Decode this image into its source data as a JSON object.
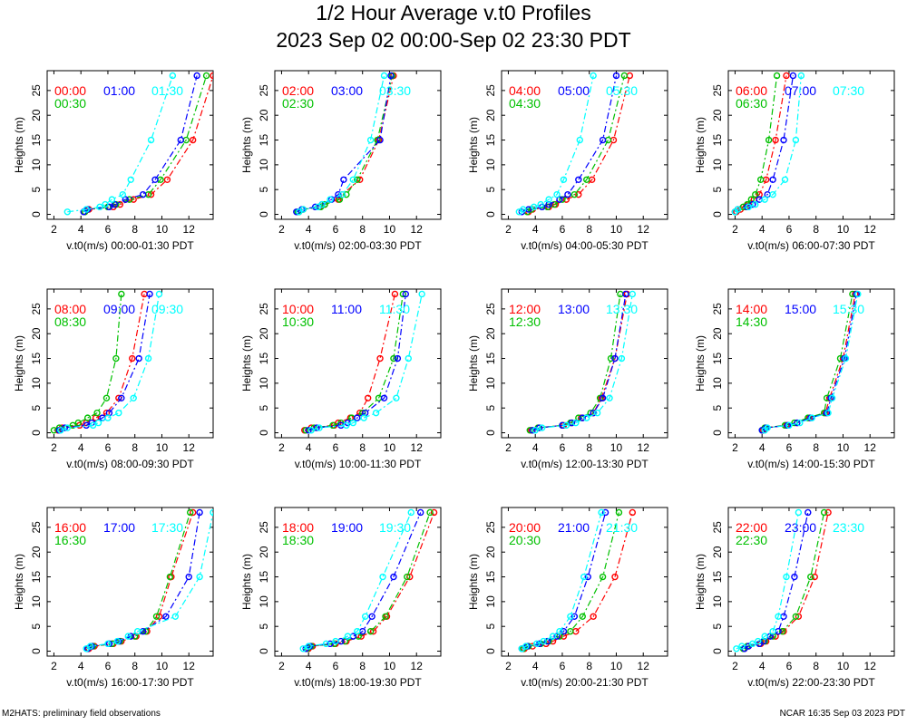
{
  "title": "1/2 Hour Average v.t0 Profiles",
  "subtitle": "2023 Sep 02 00:00-Sep 02 23:30 PDT",
  "footer_left": "M2HATS: preliminary field observations",
  "footer_right": "NCAR 16:35 Sep 03 2023 PDT",
  "colors": {
    "first": "#ff0000",
    "second": "#0000ff",
    "third": "#00ffff",
    "fourth": "#00c000"
  },
  "chart_data": {
    "type": "line",
    "ylabel": "Heights (m)",
    "xlim": [
      1.5,
      13.8
    ],
    "ylim": [
      -1,
      29
    ],
    "xticks": [
      2,
      4,
      6,
      8,
      10,
      12
    ],
    "yticks": [
      0,
      5,
      10,
      15,
      20,
      25
    ],
    "heights": [
      0.5,
      1,
      1.5,
      2,
      3,
      4,
      7,
      15,
      28
    ],
    "panels": [
      {
        "xlabel": "v.t0(m/s) 00:00-01:30 PDT",
        "series": [
          {
            "name": "00:00",
            "values": [
              4.3,
              4.6,
              6.4,
              6.9,
              7.9,
              9.2,
              10.4,
              12.3,
              13.8
            ]
          },
          {
            "name": "00:30",
            "values": [
              4.3,
              4.5,
              6.0,
              6.6,
              7.6,
              9.0,
              9.9,
              11.8,
              13.3
            ]
          },
          {
            "name": "01:00",
            "values": [
              4.2,
              4.5,
              6.1,
              6.5,
              7.3,
              8.6,
              9.5,
              11.4,
              12.6
            ]
          },
          {
            "name": "01:30",
            "values": [
              3.0,
              4.4,
              5.4,
              5.8,
              6.3,
              7.1,
              7.7,
              9.2,
              10.8
            ]
          }
        ]
      },
      {
        "xlabel": "v.t0(m/s) 02:00-03:30 PDT",
        "series": [
          {
            "name": "02:00",
            "values": [
              3.3,
              3.6,
              4.8,
              5.2,
              6.2,
              6.5,
              7.8,
              9.2,
              10.3
            ]
          },
          {
            "name": "02:30",
            "values": [
              3.2,
              3.6,
              4.9,
              5.2,
              6.3,
              6.8,
              7.6,
              9.1,
              10.2
            ]
          },
          {
            "name": "03:00",
            "values": [
              3.1,
              3.5,
              4.5,
              5.0,
              5.7,
              6.2,
              6.6,
              9.3,
              10.1
            ]
          },
          {
            "name": "03:30",
            "values": [
              3.3,
              3.6,
              4.7,
              5.0,
              5.6,
              6.5,
              7.3,
              8.6,
              9.6
            ]
          }
        ]
      },
      {
        "xlabel": "v.t0(m/s) 04:00-05:30 PDT",
        "series": [
          {
            "name": "04:00",
            "values": [
              3.5,
              3.8,
              5.0,
              5.5,
              6.3,
              7.2,
              8.2,
              9.8,
              11.0
            ]
          },
          {
            "name": "04:30",
            "values": [
              3.4,
              3.7,
              4.9,
              5.4,
              6.0,
              6.9,
              7.8,
              9.4,
              10.6
            ]
          },
          {
            "name": "05:00",
            "values": [
              3.0,
              3.5,
              4.5,
              5.0,
              5.8,
              6.4,
              7.2,
              9.0,
              10.0
            ]
          },
          {
            "name": "05:30",
            "values": [
              2.8,
              3.1,
              3.9,
              4.4,
              5.0,
              5.6,
              6.1,
              7.3,
              8.3
            ]
          }
        ]
      },
      {
        "xlabel": "v.t0(m/s) 06:00-07:30 PDT",
        "series": [
          {
            "name": "06:00",
            "values": [
              2.1,
              2.4,
              2.8,
              3.0,
              3.4,
              3.8,
              4.3,
              5.0,
              5.8
            ]
          },
          {
            "name": "06:30",
            "values": [
              2.0,
              2.2,
              2.6,
              2.9,
              3.2,
              3.5,
              3.9,
              4.5,
              5.1
            ]
          },
          {
            "name": "07:00",
            "values": [
              2.0,
              2.2,
              2.9,
              3.3,
              3.8,
              4.4,
              4.8,
              5.6,
              6.3
            ]
          },
          {
            "name": "07:30",
            "values": [
              2.0,
              2.2,
              3.0,
              3.5,
              4.2,
              4.8,
              5.7,
              6.5,
              6.9
            ]
          }
        ]
      },
      {
        "xlabel": "v.t0(m/s) 08:00-09:30 PDT",
        "series": [
          {
            "name": "08:00",
            "values": [
              2.3,
              2.6,
              3.9,
              4.4,
              5.1,
              5.9,
              6.8,
              7.8,
              8.7
            ]
          },
          {
            "name": "08:30",
            "values": [
              2.0,
              2.4,
              3.4,
              3.8,
              4.5,
              5.2,
              5.9,
              6.6,
              7.0
            ]
          },
          {
            "name": "09:00",
            "values": [
              2.4,
              2.8,
              4.4,
              4.8,
              5.6,
              6.1,
              7.0,
              8.3,
              9.1
            ]
          },
          {
            "name": "09:30",
            "values": [
              2.5,
              3.0,
              4.9,
              5.3,
              6.0,
              6.8,
              7.9,
              9.0,
              9.8
            ]
          }
        ]
      },
      {
        "xlabel": "v.t0(m/s) 10:00-11:30 PDT",
        "series": [
          {
            "name": "10:00",
            "values": [
              3.7,
              4.2,
              5.9,
              6.2,
              7.1,
              7.8,
              8.4,
              9.3,
              10.4
            ]
          },
          {
            "name": "10:30",
            "values": [
              3.8,
              4.4,
              5.8,
              6.4,
              7.2,
              8.0,
              9.2,
              10.3,
              11.0
            ]
          },
          {
            "name": "11:00",
            "values": [
              4.0,
              4.6,
              6.4,
              6.9,
              7.6,
              8.2,
              9.6,
              10.6,
              11.2
            ]
          },
          {
            "name": "11:30",
            "values": [
              4.2,
              4.8,
              6.8,
              7.3,
              8.1,
              9.0,
              10.5,
              11.4,
              12.4
            ]
          }
        ]
      },
      {
        "xlabel": "v.t0(m/s) 12:00-13:30 PDT",
        "series": [
          {
            "name": "12:00",
            "values": [
              3.7,
              4.2,
              6.1,
              6.7,
              7.4,
              8.3,
              8.9,
              9.9,
              10.8
            ]
          },
          {
            "name": "12:30",
            "values": [
              3.6,
              4.2,
              6.0,
              6.6,
              7.2,
              8.1,
              8.8,
              9.6,
              10.3
            ]
          },
          {
            "name": "13:00",
            "values": [
              3.8,
              4.3,
              6.0,
              6.7,
              7.5,
              8.3,
              9.0,
              9.9,
              10.7
            ]
          },
          {
            "name": "13:30",
            "values": [
              4.0,
              4.5,
              6.3,
              7.0,
              7.8,
              8.6,
              9.5,
              10.4,
              11.2
            ]
          }
        ]
      },
      {
        "xlabel": "v.t0(m/s) 14:00-15:30 PDT",
        "series": [
          {
            "name": "14:00",
            "values": [
              4.1,
              4.3,
              5.8,
              6.6,
              7.5,
              8.7,
              9.0,
              10.0,
              10.9
            ]
          },
          {
            "name": "14:30",
            "values": [
              4.0,
              4.2,
              5.7,
              6.4,
              7.4,
              8.6,
              8.8,
              9.8,
              10.7
            ]
          },
          {
            "name": "15:00",
            "values": [
              4.0,
              4.3,
              5.9,
              6.6,
              7.6,
              8.8,
              9.1,
              10.1,
              11.0
            ]
          },
          {
            "name": "15:30",
            "values": [
              4.2,
              4.4,
              6.0,
              6.8,
              7.7,
              8.9,
              9.2,
              10.2,
              11.1
            ]
          }
        ]
      },
      {
        "xlabel": "v.t0(m/s) 16:00-17:30 PDT",
        "series": [
          {
            "name": "16:00",
            "values": [
              4.6,
              5.0,
              6.4,
              7.0,
              8.1,
              8.9,
              9.8,
              10.7,
              12.3
            ]
          },
          {
            "name": "16:30",
            "values": [
              4.5,
              4.9,
              6.3,
              6.9,
              8.0,
              8.8,
              9.6,
              10.6,
              12.1
            ]
          },
          {
            "name": "17:00",
            "values": [
              4.5,
              4.8,
              6.1,
              6.8,
              7.7,
              8.6,
              10.3,
              12.0,
              12.8
            ]
          },
          {
            "name": "17:30",
            "values": [
              4.4,
              4.7,
              6.0,
              6.7,
              7.5,
              8.2,
              11.0,
              12.8,
              13.8
            ]
          }
        ]
      },
      {
        "xlabel": "v.t0(m/s) 18:00-19:30 PDT",
        "series": [
          {
            "name": "18:00",
            "values": [
              4.0,
              4.3,
              6.0,
              6.8,
              7.9,
              8.8,
              9.8,
              11.5,
              13.3
            ]
          },
          {
            "name": "18:30",
            "values": [
              3.9,
              4.2,
              5.9,
              6.7,
              7.7,
              8.6,
              9.7,
              11.3,
              13.0
            ]
          },
          {
            "name": "19:00",
            "values": [
              3.8,
              4.1,
              5.6,
              6.4,
              7.3,
              8.0,
              8.7,
              10.3,
              12.3
            ]
          },
          {
            "name": "19:30",
            "values": [
              3.6,
              4.0,
              5.3,
              6.0,
              6.9,
              7.6,
              8.2,
              9.5,
              11.6
            ]
          }
        ]
      },
      {
        "xlabel": "v.t0(m/s) 20:00-21:30 PDT",
        "series": [
          {
            "name": "20:00",
            "values": [
              3.2,
              3.8,
              4.8,
              5.3,
              6.1,
              7.0,
              8.3,
              9.9,
              11.2
            ]
          },
          {
            "name": "20:30",
            "values": [
              3.1,
              3.5,
              4.4,
              5.0,
              5.8,
              6.6,
              7.5,
              9.0,
              10.2
            ]
          },
          {
            "name": "21:00",
            "values": [
              3.0,
              3.4,
              4.3,
              4.9,
              5.6,
              6.1,
              6.9,
              7.9,
              9.2
            ]
          },
          {
            "name": "21:30",
            "values": [
              3.0,
              3.3,
              4.1,
              4.6,
              5.3,
              5.8,
              6.6,
              7.6,
              8.9
            ]
          }
        ]
      },
      {
        "xlabel": "v.t0(m/s) 22:00-23:30 PDT",
        "series": [
          {
            "name": "22:00",
            "values": [
              2.7,
              3.0,
              3.9,
              4.3,
              5.0,
              5.6,
              6.7,
              7.9,
              8.9
            ]
          },
          {
            "name": "22:30",
            "values": [
              2.6,
              2.9,
              3.8,
              4.2,
              4.8,
              5.5,
              6.5,
              7.6,
              8.6
            ]
          },
          {
            "name": "23:00",
            "values": [
              2.7,
              3.0,
              3.8,
              4.1,
              4.6,
              5.2,
              5.6,
              6.4,
              7.4
            ]
          },
          {
            "name": "23:30",
            "values": [
              2.1,
              2.5,
              3.3,
              3.7,
              4.2,
              4.8,
              5.2,
              5.8,
              6.7
            ]
          }
        ]
      }
    ]
  }
}
